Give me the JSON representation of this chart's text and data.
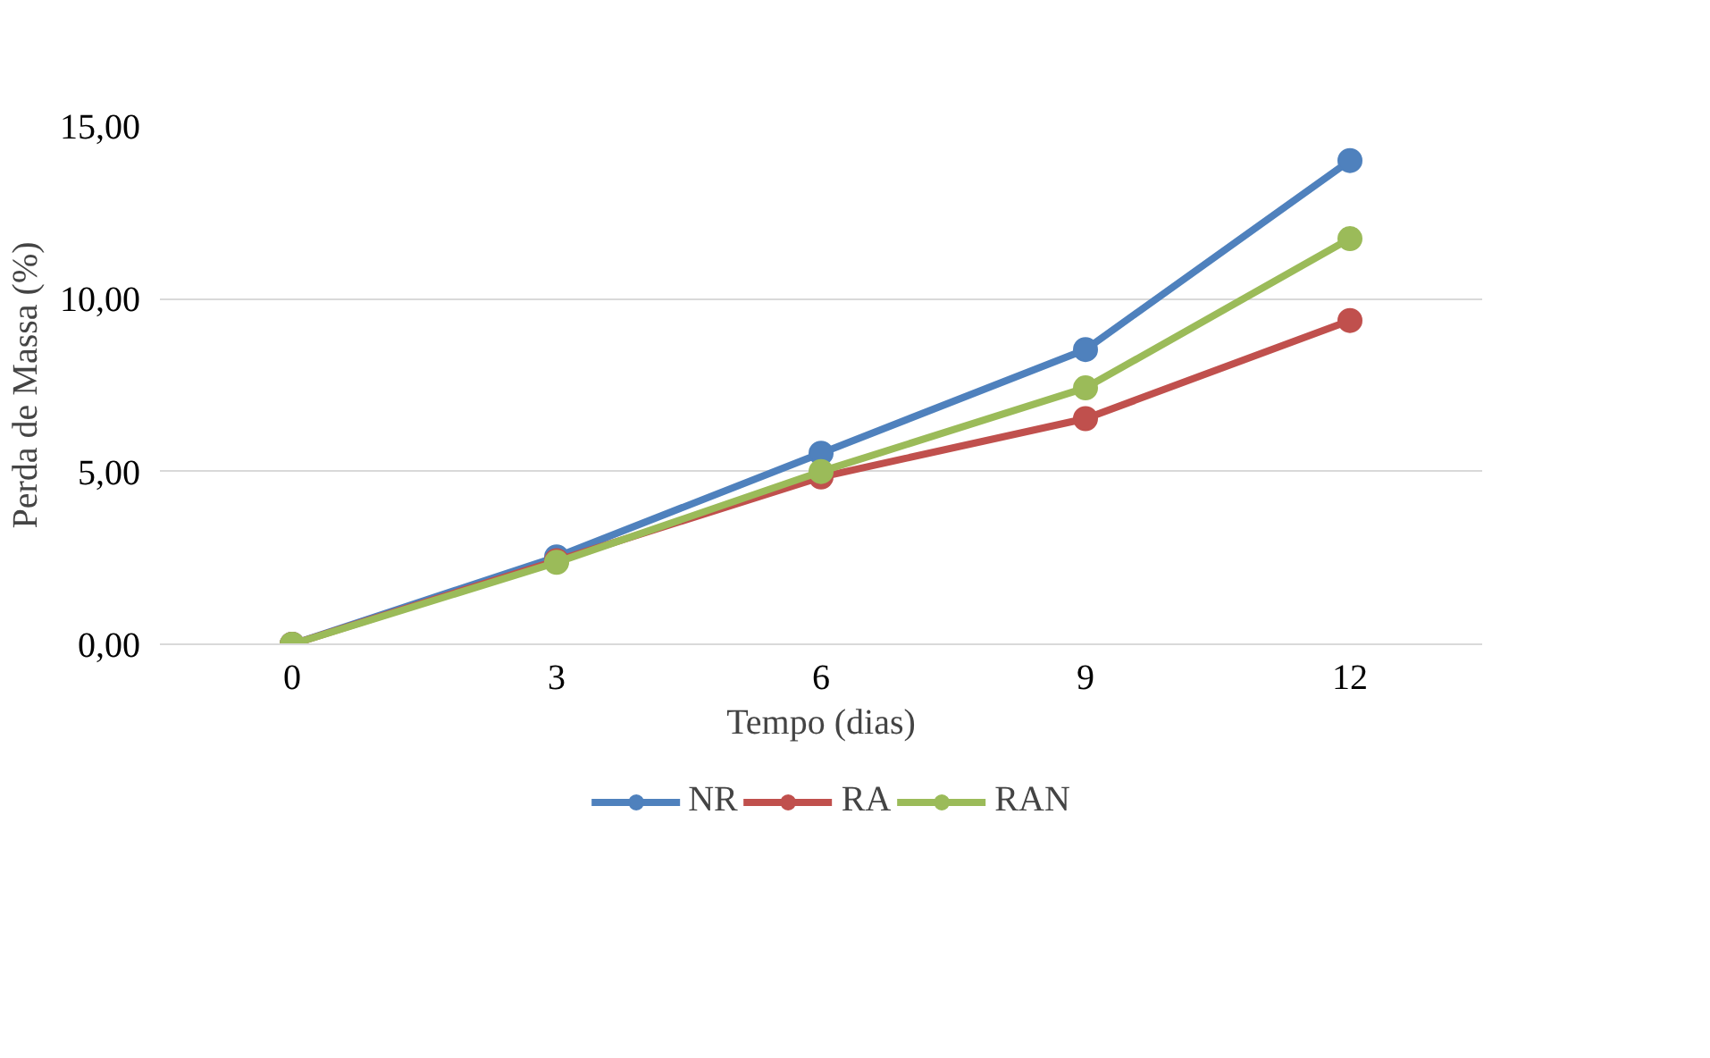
{
  "chart_data": {
    "type": "line",
    "xlabel": "Tempo (dias)",
    "ylabel": "Perda de Massa (%)",
    "categories": [
      "0",
      "3",
      "6",
      "9",
      "12"
    ],
    "series": [
      {
        "name": "NR",
        "color": "#4f81bd",
        "values": [
          0,
          2.53,
          5.53,
          8.53,
          14.0
        ]
      },
      {
        "name": "RA",
        "color": "#c0504d",
        "values": [
          0,
          2.42,
          4.84,
          6.53,
          9.37
        ]
      },
      {
        "name": "RAN",
        "color": "#9bbb59",
        "values": [
          0,
          2.37,
          5.0,
          7.42,
          11.74
        ]
      }
    ],
    "ylim": [
      0,
      15
    ],
    "yticks": [
      {
        "value": 0,
        "label": "0,00"
      },
      {
        "value": 5,
        "label": "5,00"
      },
      {
        "value": 10,
        "label": "10,00"
      },
      {
        "value": 15,
        "label": "15,00"
      }
    ],
    "grid": "y",
    "legend": "bottom",
    "marker": "circle",
    "line_style": "solid"
  }
}
